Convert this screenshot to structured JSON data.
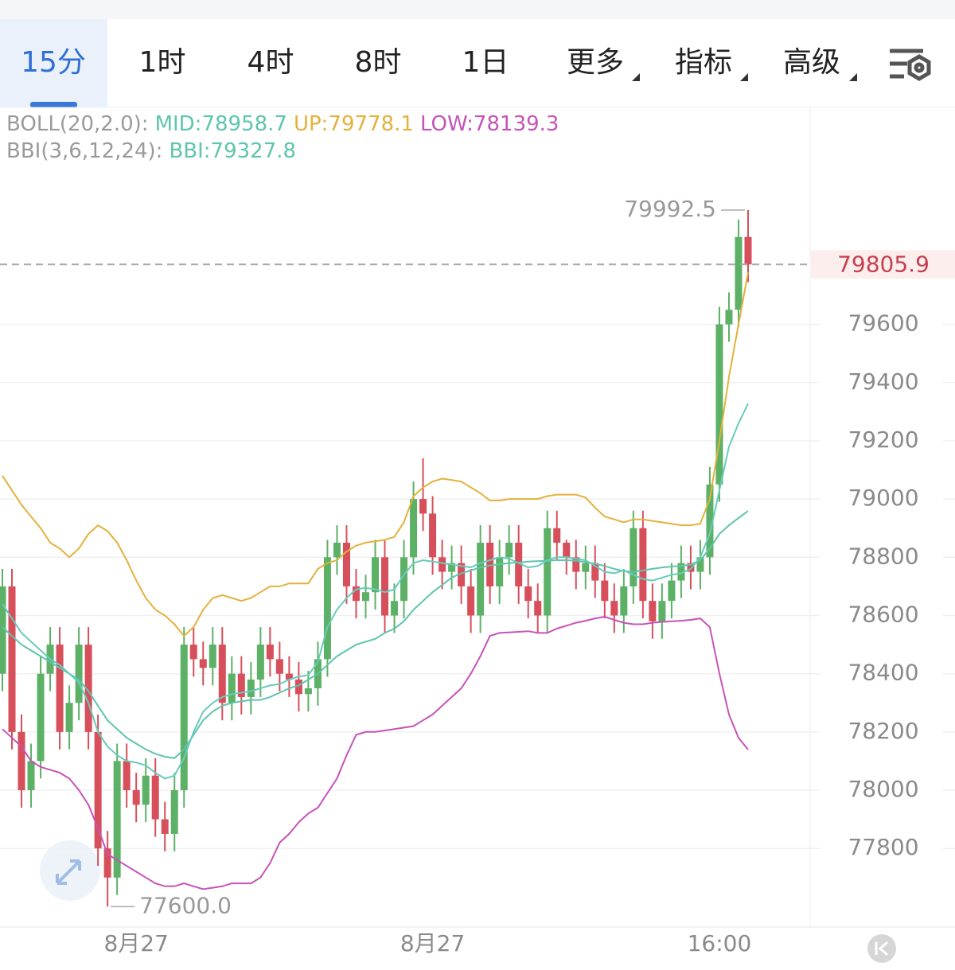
{
  "chart_data": {
    "type": "candlestick",
    "tabs": [
      "15分",
      "1时",
      "4时",
      "8时",
      "1日",
      "更多",
      "指标",
      "高级"
    ],
    "active_tab": 0,
    "indicators": [
      {
        "label": "BOLL(20,2.0):",
        "items": [
          {
            "text": "MID:78958.7",
            "color": "#5ec5ae"
          },
          {
            "text": "UP:79778.1",
            "color": "#e3b23c"
          },
          {
            "text": "LOW:78139.3",
            "color": "#c653b8"
          }
        ]
      },
      {
        "label": "BBI(3,6,12,24):",
        "items": [
          {
            "text": "BBI:79327.8",
            "color": "#5ec5ae"
          }
        ]
      }
    ],
    "categories": [
      null,
      null,
      null,
      null,
      null,
      null,
      null,
      null,
      null,
      null,
      null,
      null,
      null,
      null,
      "8月27",
      null,
      null,
      null,
      null,
      null,
      null,
      null,
      null,
      null,
      null,
      null,
      null,
      null,
      null,
      null,
      null,
      null,
      null,
      null,
      null,
      null,
      null,
      null,
      null,
      null,
      null,
      null,
      null,
      null,
      null,
      "8月27",
      null,
      null,
      null,
      null,
      null,
      null,
      null,
      null,
      null,
      null,
      null,
      null,
      null,
      null,
      null,
      null,
      null,
      null,
      null,
      null,
      null,
      null,
      null,
      null,
      null,
      null,
      null,
      null,
      null,
      "16:00",
      null,
      null,
      null
    ],
    "open": [
      78400,
      78700,
      78200,
      78000,
      78100,
      78400,
      78500,
      78200,
      78300,
      78500,
      78200,
      77800,
      77700,
      78100,
      78000,
      77950,
      78050,
      77900,
      77850,
      78000,
      78500,
      78450,
      78420,
      78500,
      78300,
      78400,
      78320,
      78380,
      78500,
      78450,
      78400,
      78380,
      78330,
      78350,
      78450,
      78800,
      78850,
      78700,
      78650,
      78680,
      78800,
      78600,
      78650,
      78800,
      79000,
      78950,
      78800,
      78750,
      78780,
      78700,
      78600,
      78850,
      78700,
      78800,
      78850,
      78700,
      78650,
      78600,
      78900,
      78850,
      78800,
      78750,
      78780,
      78720,
      78650,
      78600,
      78700,
      78900,
      78650,
      78580,
      78650,
      78720,
      78780,
      78750,
      78800,
      79050,
      79600,
      79650,
      79900
    ],
    "high": [
      78760,
      78760,
      78260,
      78160,
      78460,
      78560,
      78560,
      78360,
      78560,
      78560,
      78260,
      77860,
      78160,
      78160,
      78060,
      78110,
      78110,
      77960,
      78060,
      78560,
      78560,
      78510,
      78560,
      78560,
      78460,
      78460,
      78440,
      78560,
      78560,
      78510,
      78460,
      78440,
      78410,
      78510,
      78860,
      78910,
      78910,
      78760,
      78740,
      78860,
      78860,
      78710,
      78860,
      79060,
      79140,
      79010,
      78860,
      78840,
      78840,
      78760,
      78910,
      78910,
      78860,
      78910,
      78910,
      78760,
      78710,
      78960,
      78960,
      78860,
      78860,
      78840,
      78840,
      78780,
      78710,
      78760,
      78960,
      78960,
      78710,
      78710,
      78780,
      78840,
      78840,
      78860,
      79110,
      79660,
      79710,
      79960,
      79992.5
    ],
    "low": [
      78340,
      78140,
      77940,
      77940,
      78040,
      78340,
      78140,
      78140,
      78240,
      78140,
      77740,
      77600,
      77640,
      77940,
      77890,
      77890,
      77840,
      77790,
      77790,
      77940,
      78390,
      78360,
      78360,
      78240,
      78240,
      78260,
      78260,
      78320,
      78390,
      78340,
      78320,
      78270,
      78270,
      78290,
      78390,
      78740,
      78640,
      78590,
      78590,
      78620,
      78540,
      78540,
      78590,
      78740,
      78890,
      78740,
      78690,
      78690,
      78640,
      78540,
      78540,
      78640,
      78640,
      78740,
      78640,
      78590,
      78540,
      78540,
      78790,
      78740,
      78690,
      78690,
      78660,
      78590,
      78540,
      78540,
      78640,
      78590,
      78520,
      78520,
      78590,
      78660,
      78690,
      78690,
      78740,
      78990,
      79540,
      79590,
      79745
    ],
    "close": [
      78700,
      78200,
      78000,
      78100,
      78400,
      78500,
      78200,
      78300,
      78500,
      78200,
      77800,
      77700,
      78100,
      78000,
      77950,
      78050,
      77900,
      77850,
      78000,
      78500,
      78450,
      78420,
      78500,
      78300,
      78400,
      78320,
      78380,
      78500,
      78450,
      78400,
      78380,
      78330,
      78350,
      78450,
      78800,
      78850,
      78700,
      78650,
      78680,
      78800,
      78600,
      78650,
      78800,
      79000,
      78950,
      78800,
      78750,
      78780,
      78700,
      78600,
      78850,
      78700,
      78800,
      78850,
      78700,
      78650,
      78600,
      78900,
      78850,
      78800,
      78750,
      78780,
      78720,
      78650,
      78600,
      78700,
      78900,
      78650,
      78580,
      78650,
      78720,
      78780,
      78750,
      78800,
      79050,
      79600,
      79650,
      79900,
      79805.9
    ],
    "up_color": "#5cb167",
    "down_color": "#d64f5b",
    "lines": [
      {
        "color": "#e3b23c",
        "values": [
          79080,
          79030,
          78980,
          78940,
          78900,
          78850,
          78830,
          78800,
          78830,
          78880,
          78910,
          78890,
          78850,
          78790,
          78720,
          78660,
          78620,
          78600,
          78570,
          78530,
          78560,
          78620,
          78660,
          78670,
          78660,
          78650,
          78660,
          78680,
          78700,
          78700,
          78710,
          78710,
          78710,
          78760,
          78780,
          78790,
          78820,
          78840,
          78850,
          78855,
          78860,
          78870,
          78920,
          79010,
          79040,
          79060,
          79070,
          79065,
          79060,
          79040,
          79020,
          78995,
          78995,
          79000,
          79000,
          79000,
          79000,
          79010,
          79015,
          79015,
          79015,
          79005,
          78970,
          78940,
          78930,
          78920,
          78930,
          78930,
          78925,
          78920,
          78915,
          78910,
          78910,
          78915,
          79000,
          79200,
          79420,
          79600,
          79778.1
        ]
      },
      {
        "color": "#5ec5ae",
        "values": [
          78560,
          78530,
          78500,
          78480,
          78460,
          78440,
          78420,
          78400,
          78380,
          78340,
          78290,
          78240,
          78210,
          78180,
          78160,
          78140,
          78125,
          78115,
          78110,
          78140,
          78190,
          78240,
          78270,
          78290,
          78300,
          78305,
          78310,
          78310,
          78320,
          78335,
          78350,
          78360,
          78380,
          78400,
          78430,
          78460,
          78480,
          78500,
          78510,
          78520,
          78540,
          78555,
          78580,
          78620,
          78650,
          78680,
          78705,
          78730,
          78745,
          78755,
          78765,
          78772,
          78776,
          78780,
          78782,
          78785,
          78787,
          78788,
          78790,
          78790,
          78788,
          78784,
          78778,
          78770,
          78760,
          78752,
          78750,
          78755,
          78760,
          78765,
          78768,
          78770,
          78775,
          78790,
          78830,
          78880,
          78910,
          78935,
          78958.7
        ]
      },
      {
        "color": "#c653b8",
        "values": [
          78210,
          78180,
          78150,
          78100,
          78080,
          78070,
          78060,
          78040,
          78000,
          77950,
          77870,
          77780,
          77760,
          77740,
          77720,
          77700,
          77680,
          77670,
          77670,
          77680,
          77670,
          77660,
          77665,
          77670,
          77680,
          77680,
          77680,
          77700,
          77750,
          77820,
          77850,
          77890,
          77920,
          77940,
          77990,
          78040,
          78120,
          78190,
          78200,
          78200,
          78205,
          78210,
          78215,
          78220,
          78240,
          78260,
          78290,
          78320,
          78350,
          78400,
          78460,
          78530,
          78540,
          78542,
          78544,
          78546,
          78540,
          78540,
          78555,
          78565,
          78575,
          78582,
          78590,
          78596,
          78585,
          78575,
          78570,
          78570,
          78575,
          78578,
          78580,
          78582,
          78585,
          78590,
          78560,
          78400,
          78260,
          78180,
          78139.3
        ]
      },
      {
        "color": "#68cbbd",
        "values": [
          78640,
          78590,
          78540,
          78510,
          78480,
          78450,
          78430,
          78400,
          78370,
          78300,
          78200,
          78150,
          78120,
          78100,
          78095,
          78085,
          78060,
          78040,
          78050,
          78110,
          78200,
          78270,
          78300,
          78320,
          78330,
          78335,
          78340,
          78350,
          78360,
          78365,
          78380,
          78390,
          78395,
          78440,
          78560,
          78620,
          78660,
          78690,
          78695,
          78690,
          78680,
          78690,
          78740,
          78780,
          78790,
          78785,
          78780,
          78775,
          78770,
          78765,
          78780,
          78790,
          78800,
          78795,
          78780,
          78765,
          78770,
          78790,
          78800,
          78800,
          78795,
          78790,
          78770,
          78750,
          78745,
          78755,
          78740,
          78725,
          78720,
          78730,
          78740,
          78745,
          78760,
          78800,
          78880,
          79030,
          79180,
          79260,
          79327.8
        ]
      }
    ],
    "ylim": [
      77530,
      80345
    ],
    "yticks": [
      77800,
      78000,
      78200,
      78400,
      78600,
      78800,
      79000,
      79200,
      79400,
      79600
    ],
    "grid": true,
    "last_price": 79805.9,
    "max_mark": 79992.5,
    "min_mark": {
      "value": 77600,
      "label": "77600.0"
    }
  }
}
